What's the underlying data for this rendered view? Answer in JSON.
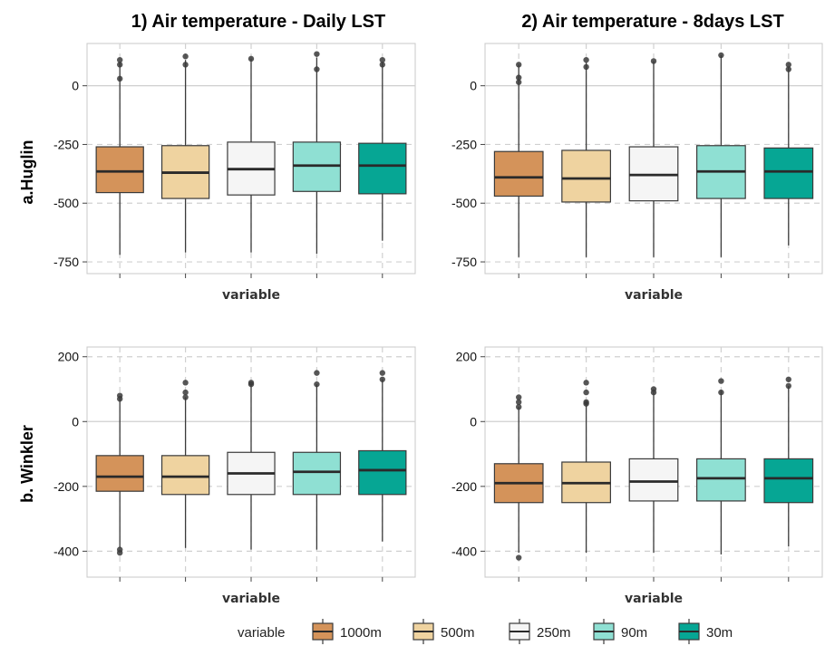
{
  "titles": {
    "col1": "1) Air temperature - Daily LST",
    "col2": "2)  Air temperature - 8days LST"
  },
  "row_labels": {
    "row1": "a.Huglin",
    "row2": "b. Winkler"
  },
  "legend": {
    "title": "variable",
    "items": [
      {
        "label": "1000m",
        "color": "#D4935A"
      },
      {
        "label": "500m",
        "color": "#EFD3A0"
      },
      {
        "label": "250m",
        "color": "#F5F5F5"
      },
      {
        "label": "90m",
        "color": "#8FE0D3"
      },
      {
        "label": "30m",
        "color": "#06A694"
      }
    ]
  },
  "chart_data": [
    {
      "type": "box",
      "row": "a.Huglin",
      "column": "1) Air temperature - Daily LST",
      "xlabel": "variable",
      "ylim": [
        -800,
        180
      ],
      "yticks": [
        0,
        -250,
        -500,
        -750
      ],
      "grid": true,
      "series": [
        {
          "name": "1000m",
          "min": -720,
          "q1": -455,
          "median": -365,
          "q3": -260,
          "max": 100,
          "outliers": [
            110,
            90,
            30
          ]
        },
        {
          "name": "500m",
          "min": -710,
          "q1": -480,
          "median": -370,
          "q3": -255,
          "max": 110,
          "outliers": [
            125,
            90
          ]
        },
        {
          "name": "250m",
          "min": -710,
          "q1": -465,
          "median": -355,
          "q3": -240,
          "max": 115,
          "outliers": [
            115
          ]
        },
        {
          "name": "90m",
          "min": -715,
          "q1": -450,
          "median": -340,
          "q3": -240,
          "max": 120,
          "outliers": [
            135,
            70
          ]
        },
        {
          "name": "30m",
          "min": -660,
          "q1": -460,
          "median": -340,
          "q3": -245,
          "max": 100,
          "outliers": [
            110,
            90
          ]
        }
      ]
    },
    {
      "type": "box",
      "row": "a.Huglin",
      "column": "2)  Air temperature - 8days LST",
      "xlabel": "variable",
      "ylim": [
        -800,
        180
      ],
      "yticks": [
        0,
        -250,
        -500,
        -750
      ],
      "grid": true,
      "series": [
        {
          "name": "1000m",
          "min": -730,
          "q1": -470,
          "median": -390,
          "q3": -280,
          "max": 90,
          "outliers": [
            90,
            35,
            15
          ]
        },
        {
          "name": "500m",
          "min": -730,
          "q1": -495,
          "median": -395,
          "q3": -275,
          "max": 100,
          "outliers": [
            110,
            80
          ]
        },
        {
          "name": "250m",
          "min": -730,
          "q1": -490,
          "median": -380,
          "q3": -260,
          "max": 105,
          "outliers": [
            105
          ]
        },
        {
          "name": "90m",
          "min": -730,
          "q1": -480,
          "median": -365,
          "q3": -255,
          "max": 130,
          "outliers": [
            130
          ]
        },
        {
          "name": "30m",
          "min": -680,
          "q1": -480,
          "median": -365,
          "q3": -265,
          "max": 80,
          "outliers": [
            90,
            70
          ]
        }
      ]
    },
    {
      "type": "box",
      "row": "b. Winkler",
      "column": "1) Air temperature - Daily LST",
      "xlabel": "variable",
      "ylim": [
        -480,
        230
      ],
      "yticks": [
        200,
        0,
        -200,
        -400
      ],
      "grid": true,
      "series": [
        {
          "name": "1000m",
          "min": -390,
          "q1": -215,
          "median": -170,
          "q3": -105,
          "max": 70,
          "outliers": [
            80,
            70,
            -395,
            -405
          ]
        },
        {
          "name": "500m",
          "min": -390,
          "q1": -225,
          "median": -170,
          "q3": -105,
          "max": 75,
          "outliers": [
            120,
            90,
            75
          ]
        },
        {
          "name": "250m",
          "min": -395,
          "q1": -225,
          "median": -160,
          "q3": -95,
          "max": 115,
          "outliers": [
            120,
            115
          ]
        },
        {
          "name": "90m",
          "min": -395,
          "q1": -225,
          "median": -155,
          "q3": -95,
          "max": 115,
          "outliers": [
            150,
            115
          ]
        },
        {
          "name": "30m",
          "min": -370,
          "q1": -225,
          "median": -150,
          "q3": -90,
          "max": 130,
          "outliers": [
            150,
            130
          ]
        }
      ]
    },
    {
      "type": "box",
      "row": "b. Winkler",
      "column": "2)  Air temperature - 8days LST",
      "xlabel": "variable",
      "ylim": [
        -480,
        230
      ],
      "yticks": [
        200,
        0,
        -200,
        -400
      ],
      "grid": true,
      "series": [
        {
          "name": "1000m",
          "min": -405,
          "q1": -250,
          "median": -190,
          "q3": -130,
          "max": 45,
          "outliers": [
            75,
            60,
            45,
            -420
          ]
        },
        {
          "name": "500m",
          "min": -405,
          "q1": -250,
          "median": -190,
          "q3": -125,
          "max": 60,
          "outliers": [
            120,
            90,
            60,
            55
          ]
        },
        {
          "name": "250m",
          "min": -405,
          "q1": -245,
          "median": -185,
          "q3": -115,
          "max": 90,
          "outliers": [
            100,
            90
          ]
        },
        {
          "name": "90m",
          "min": -410,
          "q1": -245,
          "median": -175,
          "q3": -115,
          "max": 95,
          "outliers": [
            125,
            90
          ]
        },
        {
          "name": "30m",
          "min": -385,
          "q1": -250,
          "median": -175,
          "q3": -115,
          "max": 110,
          "outliers": [
            130,
            110
          ]
        }
      ]
    }
  ]
}
